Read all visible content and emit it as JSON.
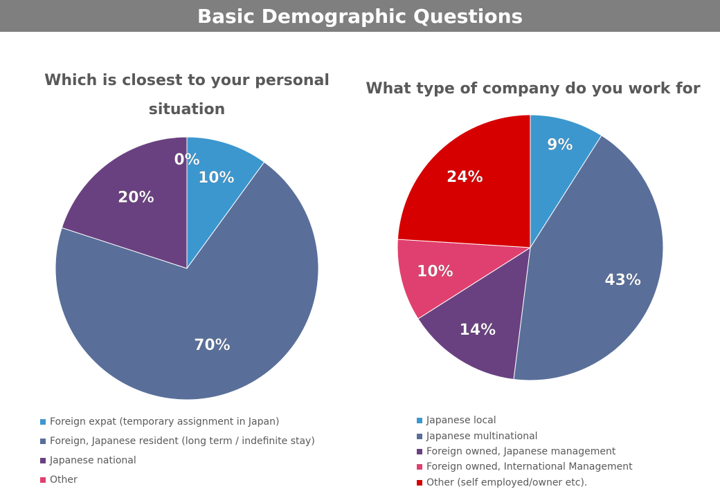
{
  "header": {
    "title": "Basic Demographic Questions"
  },
  "colors": {
    "banner": "#7f7f7f",
    "title_text": "#595959",
    "slice_blue": "#3c97cf",
    "slice_slate": "#596f9a",
    "slice_purple": "#6a4180",
    "slice_pink": "#e0406f",
    "slice_red": "#d60000"
  },
  "chart_data": [
    {
      "type": "pie",
      "title": "Which is closest to your personal situation",
      "title_lines": [
        "Which is closest to your personal",
        "situation"
      ],
      "legend_position": "bottom",
      "slices": [
        {
          "label": "Foreign expat (temporary assignment in Japan)",
          "value": 10,
          "display": "10%",
          "color": "#3c97cf"
        },
        {
          "label": "Foreign, Japanese resident (long term / indefinite stay)",
          "value": 70,
          "display": "70%",
          "color": "#596f9a"
        },
        {
          "label": "Japanese national",
          "value": 20,
          "display": "20%",
          "color": "#6a4180"
        },
        {
          "label": "Other",
          "value": 0,
          "display": "0%",
          "color": "#e0406f"
        }
      ]
    },
    {
      "type": "pie",
      "title": "What type of company do you work for",
      "title_lines": [
        "What type of company do you work for"
      ],
      "legend_position": "bottom",
      "slices": [
        {
          "label": "Japanese local",
          "value": 9,
          "display": "9%",
          "color": "#3c97cf"
        },
        {
          "label": "Japanese multinational",
          "value": 43,
          "display": "43%",
          "color": "#596f9a"
        },
        {
          "label": "Foreign owned, Japanese management",
          "value": 14,
          "display": "14%",
          "color": "#6a4180"
        },
        {
          "label": "Foreign owned, International Management",
          "value": 10,
          "display": "10%",
          "color": "#e0406f"
        },
        {
          "label": "Other (self employed/owner etc).",
          "value": 24,
          "display": "24%",
          "color": "#d60000"
        }
      ]
    }
  ]
}
